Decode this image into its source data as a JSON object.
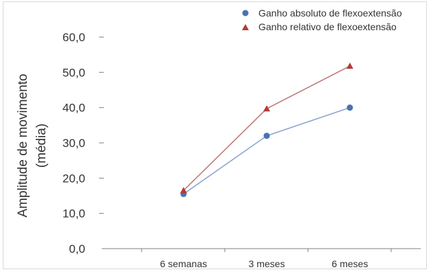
{
  "chart_data": {
    "type": "line",
    "categories": [
      "6 semanas",
      "3 meses",
      "6 meses"
    ],
    "series": [
      {
        "name": "Ganho absoluto de flexoextensão",
        "values": [
          15.5,
          32.0,
          40.0
        ],
        "color": "#4a72b0",
        "marker": "circle"
      },
      {
        "name": "Ganho relativo de flexoextensão",
        "values": [
          16.5,
          39.7,
          51.8
        ],
        "color": "#b03c3c",
        "marker": "triangle"
      }
    ],
    "yticks": [
      "0,0",
      "10,0",
      "20,0",
      "30,0",
      "40,0",
      "50,0",
      "60,0"
    ],
    "ylabel_line1": "Amplitude  de movimento",
    "ylabel_line2": "(média)",
    "ylim": [
      0,
      60
    ],
    "grid": false,
    "legend_position": "top-right",
    "line_colors": [
      "#8da6cf",
      "#c27b7b"
    ]
  }
}
